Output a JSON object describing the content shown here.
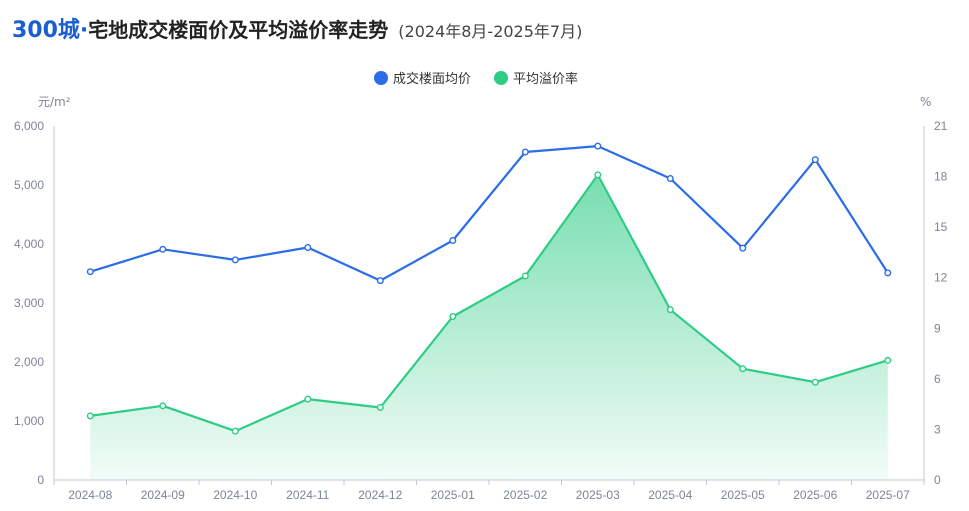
{
  "title": {
    "accent": "300城·",
    "main": "宅地成交楼面价及平均溢价率走势",
    "period": "(2024年8月-2025年7月)"
  },
  "chart_data": {
    "type": "line",
    "categories": [
      "2024-08",
      "2024-09",
      "2024-10",
      "2024-11",
      "2024-12",
      "2025-01",
      "2025-02",
      "2025-03",
      "2025-04",
      "2025-05",
      "2025-06",
      "2025-07"
    ],
    "series": [
      {
        "name": "成交楼面均价",
        "axis": "left",
        "color": "#2b6de6",
        "values": [
          3530,
          3910,
          3730,
          3940,
          3380,
          4060,
          5560,
          5660,
          5110,
          3930,
          5430,
          3510
        ]
      },
      {
        "name": "平均溢价率",
        "axis": "right",
        "color": "#2ecc85",
        "area": true,
        "values": [
          3.8,
          4.4,
          2.9,
          4.8,
          4.3,
          9.7,
          12.1,
          18.1,
          10.1,
          6.6,
          5.8,
          7.1
        ]
      }
    ],
    "y_left": {
      "unit": "元/m²",
      "range": [
        0,
        6000
      ],
      "ticks": [
        "0",
        "1,000",
        "2,000",
        "3,000",
        "4,000",
        "5,000",
        "6,000"
      ]
    },
    "y_right": {
      "unit": "%",
      "range": [
        0,
        21
      ],
      "ticks": [
        "0",
        "3",
        "6",
        "9",
        "12",
        "15",
        "18",
        "21"
      ]
    },
    "legend_position": "top-center",
    "grid": false
  }
}
